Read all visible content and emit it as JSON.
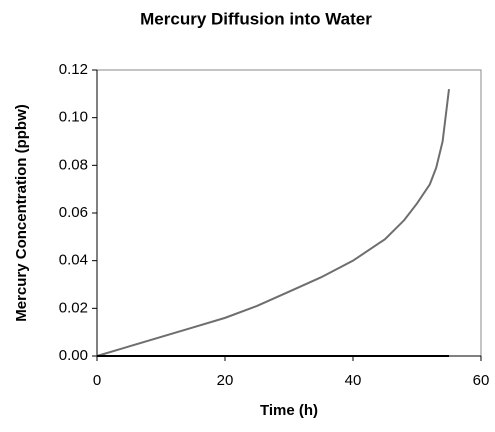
{
  "chart_data": {
    "type": "line",
    "title": "Mercury Diffusion into Water",
    "xlabel": "Time (h)",
    "ylabel": "Mercury Concentration (ppbw)",
    "x": [
      0,
      5,
      10,
      15,
      20,
      25,
      30,
      35,
      40,
      45,
      48,
      50,
      52,
      53,
      54,
      55
    ],
    "series": [
      {
        "color": "#6e6e6e",
        "values": [
          0,
          0.004,
          0.008,
          0.012,
          0.016,
          0.021,
          0.027,
          0.033,
          0.04,
          0.049,
          0.057,
          0.064,
          0.072,
          0.079,
          0.09,
          0.112
        ]
      },
      {
        "color": "#000000",
        "values": [
          0,
          0,
          0,
          0,
          0,
          0,
          0,
          0,
          0,
          0,
          0,
          0,
          0,
          0,
          0,
          0
        ]
      }
    ],
    "xlim": [
      0,
      60
    ],
    "xticks": [
      0,
      20,
      40,
      60
    ],
    "ylim": [
      0,
      0.12
    ],
    "yticks": [
      {
        "value": 0,
        "label": "0.00"
      },
      0.02,
      0.04,
      0.06,
      0.08,
      {
        "value": 0.1,
        "label": "0.10"
      },
      0.12
    ],
    "grid": false
  }
}
